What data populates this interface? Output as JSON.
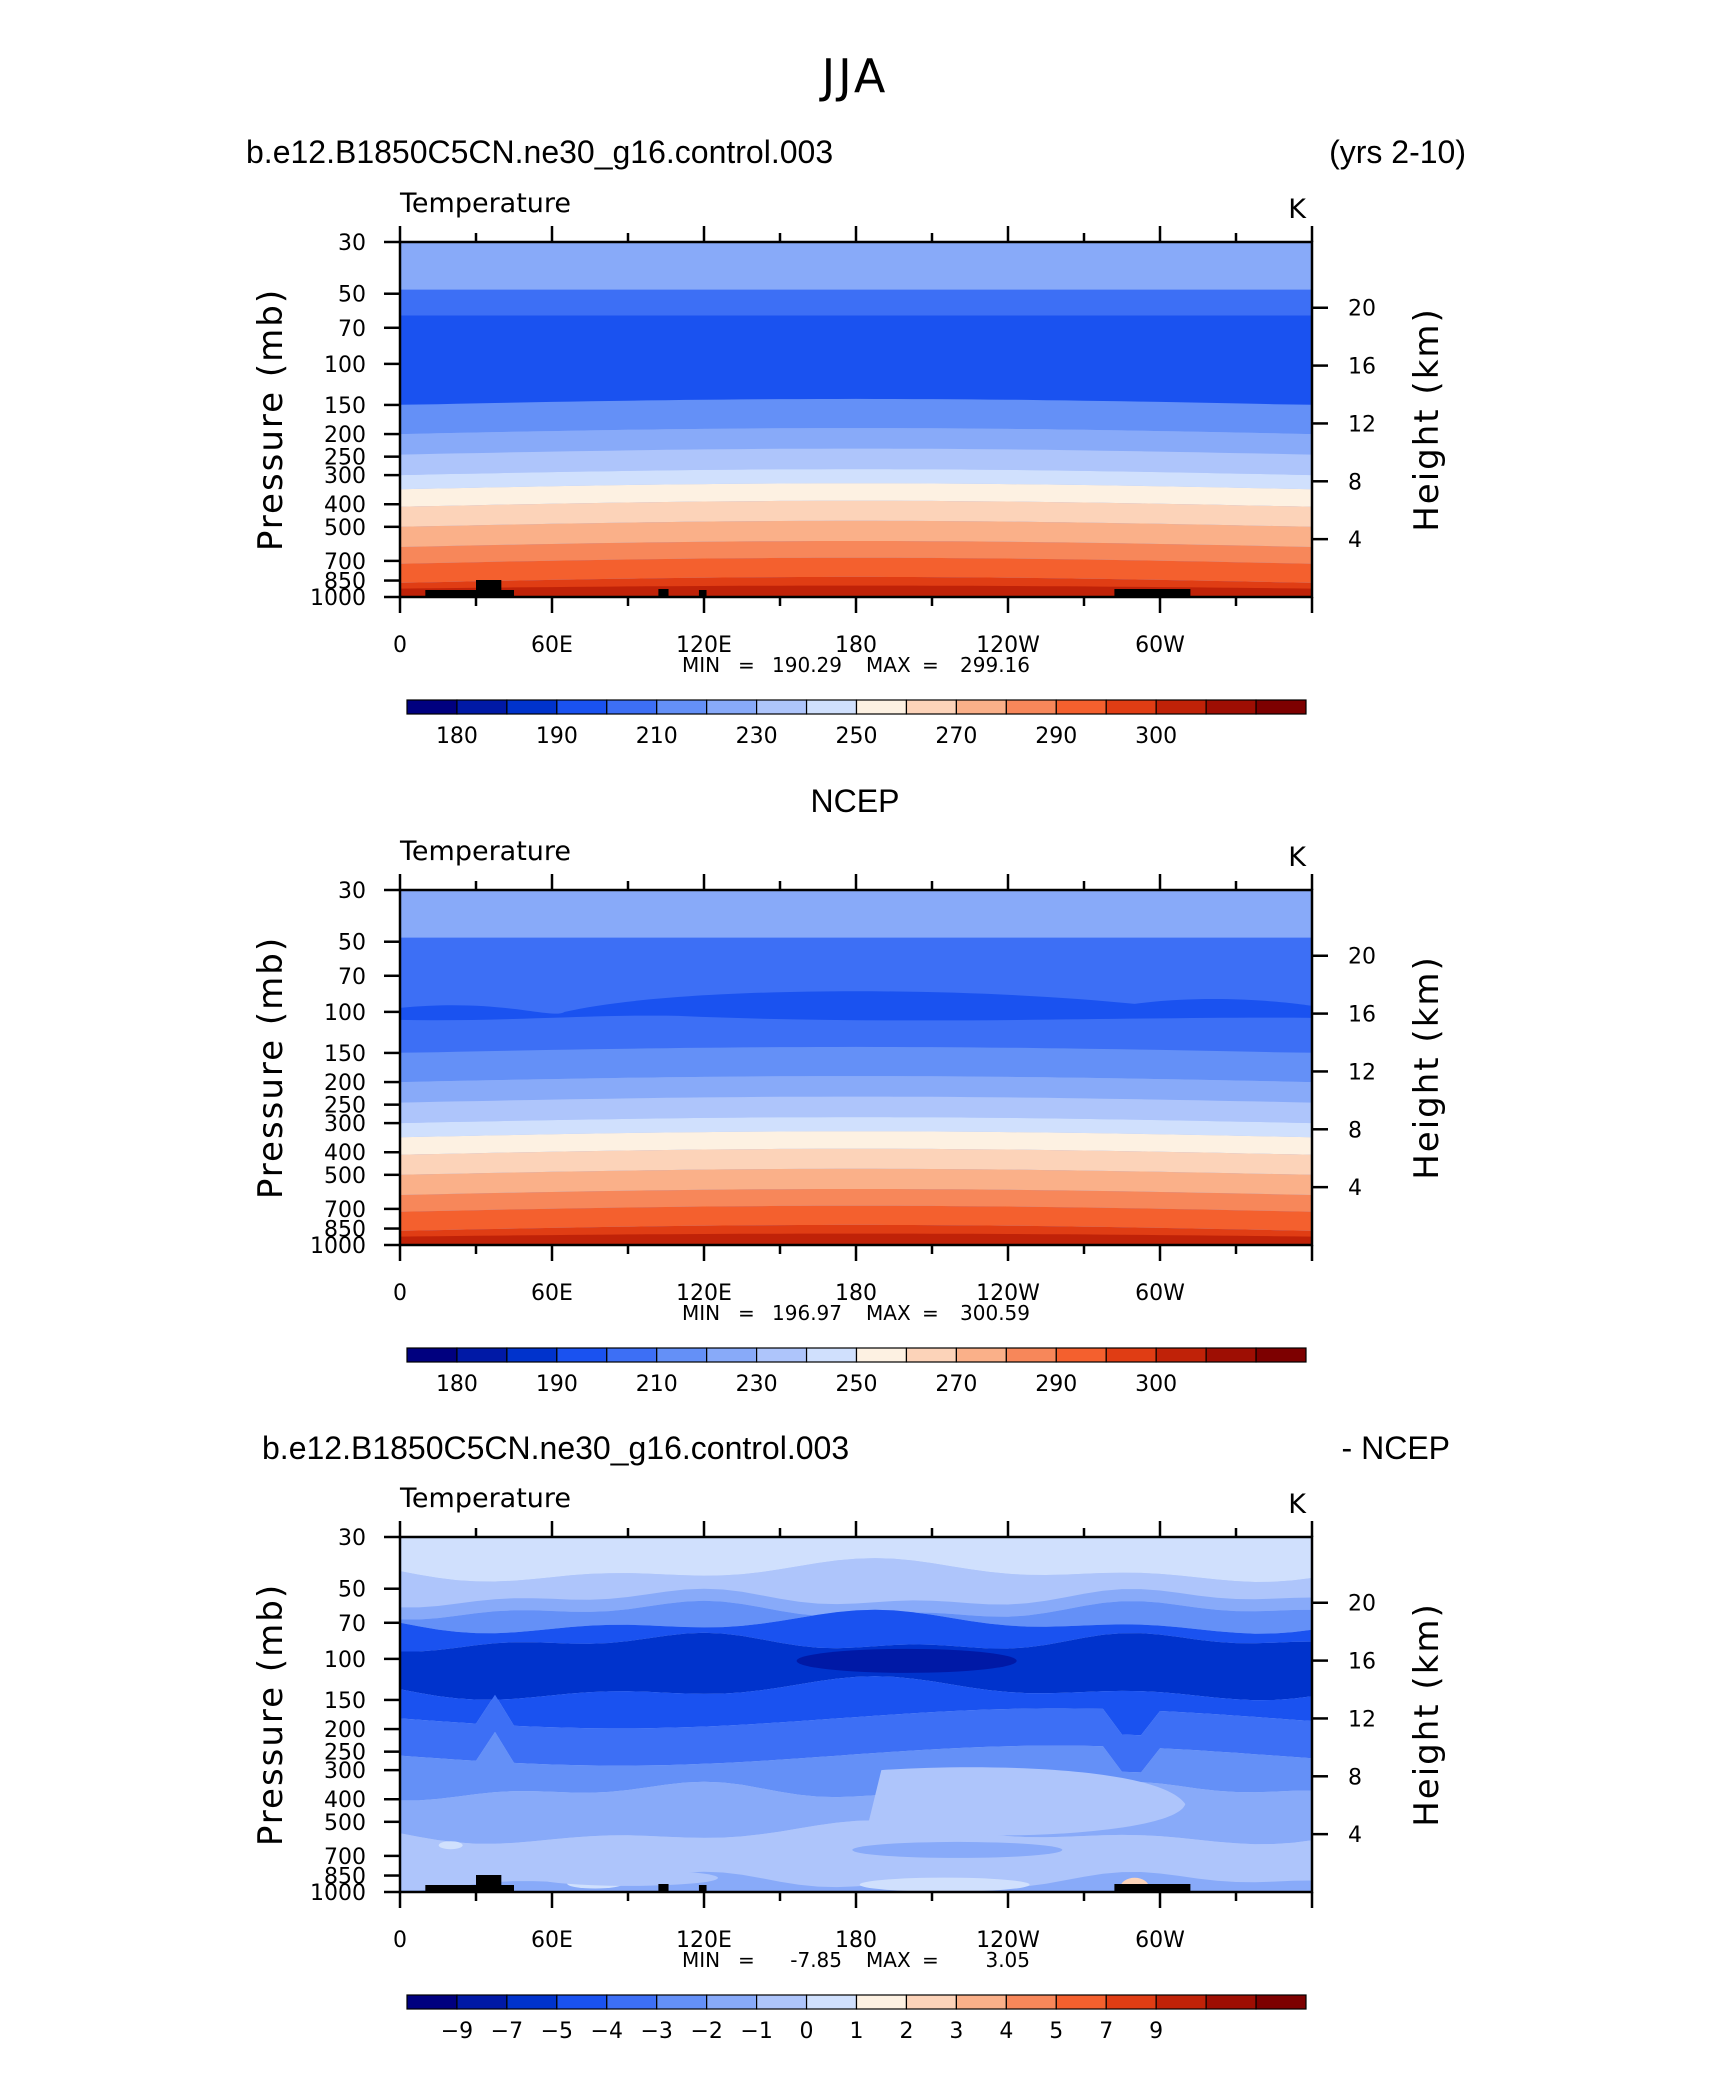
{
  "main_title": "JJA",
  "colors": {
    "model_levels": [
      "#00007f",
      "#0019a6",
      "#0033cc",
      "#1a52f0",
      "#3d6ff5",
      "#6490f7",
      "#88aaf9",
      "#aec5fb",
      "#d0e0fd",
      "#fdf1e2",
      "#fcd3b9",
      "#fab089",
      "#f7875a",
      "#f4602e",
      "#e03d14",
      "#c02208",
      "#9e0e03",
      "#7d0000"
    ],
    "diff_levels": [
      "#00007f",
      "#0019a6",
      "#0033cc",
      "#1a52f0",
      "#3d6ff5",
      "#6490f7",
      "#88aaf9",
      "#aec5fb",
      "#d0e0fd",
      "#fdf1e2",
      "#fcd3b9",
      "#fab089",
      "#f7875a",
      "#f4602e",
      "#e03d14",
      "#c02208",
      "#9e0e03",
      "#7d0000"
    ]
  },
  "chart_data": [
    {
      "type": "heatmap",
      "title": "b.e12.B1850C5CN.ne30_g16.control.003",
      "title_right": "(yrs 2-10)",
      "variable": "Temperature",
      "units": "K",
      "ylabel": "Pressure  (mb)",
      "ylabel_right": "Height  (km)",
      "x_ticks": [
        "0",
        "60E",
        "120E",
        "180",
        "120W",
        "60W"
      ],
      "y_ticks": [
        "30",
        "50",
        "70",
        "100",
        "150",
        "200",
        "250",
        "300",
        "400",
        "500",
        "700",
        "850",
        "1000"
      ],
      "y_ticks_right": [
        "20",
        "16",
        "12",
        "8",
        "4"
      ],
      "min_label": "MIN",
      "min": "190.29",
      "max_label": "MAX",
      "max": "299.16",
      "colorbar_labels": [
        "180",
        "190",
        "210",
        "230",
        "250",
        "270",
        "290",
        "300"
      ]
    },
    {
      "type": "heatmap",
      "title": "NCEP",
      "variable": "Temperature",
      "units": "K",
      "ylabel": "Pressure  (mb)",
      "ylabel_right": "Height  (km)",
      "x_ticks": [
        "0",
        "60E",
        "120E",
        "180",
        "120W",
        "60W"
      ],
      "y_ticks": [
        "30",
        "50",
        "70",
        "100",
        "150",
        "200",
        "250",
        "300",
        "400",
        "500",
        "700",
        "850",
        "1000"
      ],
      "y_ticks_right": [
        "20",
        "16",
        "12",
        "8",
        "4"
      ],
      "min_label": "MIN",
      "min": "196.97",
      "max_label": "MAX",
      "max": "300.59",
      "colorbar_labels": [
        "180",
        "190",
        "210",
        "230",
        "250",
        "270",
        "290",
        "300"
      ]
    },
    {
      "type": "heatmap",
      "title": "b.e12.B1850C5CN.ne30_g16.control.003",
      "title_right": "- NCEP",
      "variable": "Temperature",
      "units": "K",
      "ylabel": "Pressure  (mb)",
      "ylabel_right": "Height  (km)",
      "x_ticks": [
        "0",
        "60E",
        "120E",
        "180",
        "120W",
        "60W"
      ],
      "y_ticks": [
        "30",
        "50",
        "70",
        "100",
        "150",
        "200",
        "250",
        "300",
        "400",
        "500",
        "700",
        "850",
        "1000"
      ],
      "y_ticks_right": [
        "20",
        "16",
        "12",
        "8",
        "4"
      ],
      "min_label": "MIN",
      "min": "-7.85",
      "max_label": "MAX",
      "max": "3.05",
      "colorbar_labels": [
        "−9",
        "−7",
        "−5",
        "−4",
        "−3",
        "−2",
        "−1",
        "0",
        "1",
        "2",
        "3",
        "4",
        "5",
        "7",
        "9"
      ]
    }
  ]
}
